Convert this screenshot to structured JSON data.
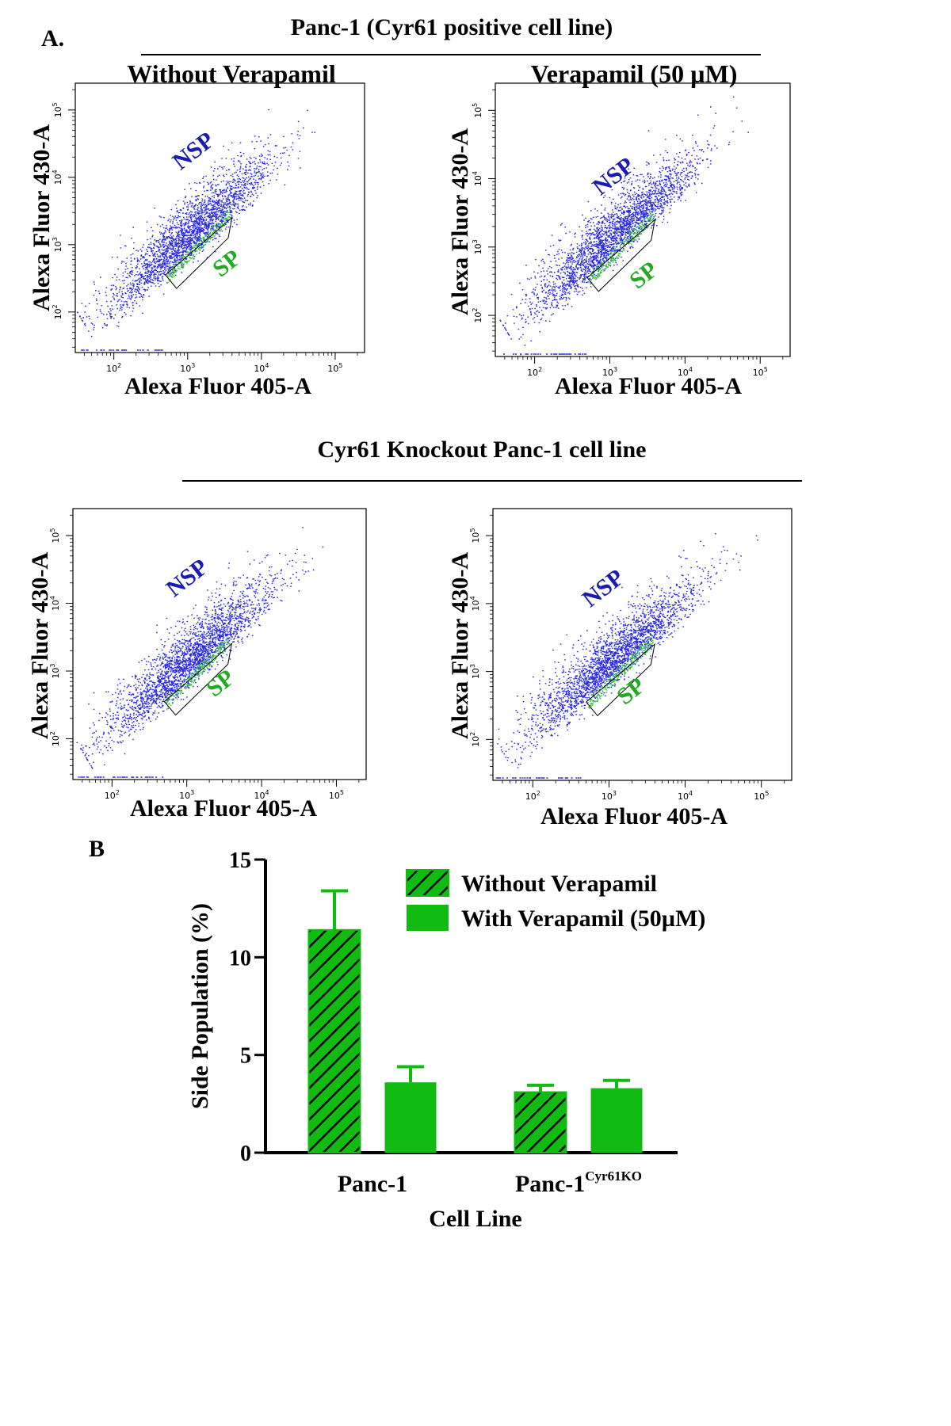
{
  "figure": {
    "panel_a_label": "A.",
    "panel_b_label": "B",
    "group1_title": "Panc-1 (Cyr61 positive cell line)",
    "group2_title": "Cyr61 Knockout Panc-1 cell line"
  },
  "colors": {
    "nsp": "#1a1ab4",
    "sp": "#22aa22",
    "bar_fill": "#11bb11",
    "points": "#2828e6",
    "sp_points": "#33cc33"
  },
  "chart_data": [
    {
      "type": "scatter",
      "title": "Without Verapamil",
      "xlabel": "Alexa Fluor 405-A",
      "ylabel": "Alexa Fluor 430-A",
      "xscale": "log",
      "yscale": "log",
      "xlim": [
        30,
        250000
      ],
      "ylim": [
        25,
        250000
      ],
      "x_ticks": [
        "10^2",
        "10^3",
        "10^4",
        "10^5"
      ],
      "y_ticks": [
        "10^2",
        "10^3",
        "10^4",
        "10^5"
      ],
      "gates": [
        {
          "name": "NSP"
        },
        {
          "name": "SP"
        }
      ]
    },
    {
      "type": "scatter",
      "title": "Verapamil (50 µM)",
      "xlabel": "Alexa Fluor 405-A",
      "ylabel": "Alexa Fluor 430-A",
      "xscale": "log",
      "yscale": "log",
      "xlim": [
        30,
        250000
      ],
      "ylim": [
        25,
        250000
      ],
      "x_ticks": [
        "10^2",
        "10^3",
        "10^4",
        "10^5"
      ],
      "y_ticks": [
        "10^2",
        "10^3",
        "10^4",
        "10^5"
      ],
      "gates": [
        {
          "name": "NSP"
        },
        {
          "name": "SP"
        }
      ]
    },
    {
      "type": "scatter",
      "title": "",
      "xlabel": "Alexa Fluor 405-A",
      "ylabel": "Alexa Fluor 430-A",
      "xscale": "log",
      "yscale": "log",
      "xlim": [
        30,
        250000
      ],
      "ylim": [
        25,
        250000
      ],
      "x_ticks": [
        "10^2",
        "10^3",
        "10^4",
        "10^5"
      ],
      "y_ticks": [
        "10^2",
        "10^3",
        "10^4",
        "10^5"
      ],
      "gates": [
        {
          "name": "NSP"
        },
        {
          "name": "SP"
        }
      ]
    },
    {
      "type": "scatter",
      "title": "",
      "xlabel": "Alexa Fluor 405-A",
      "ylabel": "Alexa Fluor 430-A",
      "xscale": "log",
      "yscale": "log",
      "xlim": [
        30,
        250000
      ],
      "ylim": [
        25,
        250000
      ],
      "x_ticks": [
        "10^2",
        "10^3",
        "10^4",
        "10^5"
      ],
      "y_ticks": [
        "10^2",
        "10^3",
        "10^4",
        "10^5"
      ],
      "gates": [
        {
          "name": "NSP"
        },
        {
          "name": "SP"
        }
      ]
    },
    {
      "type": "bar",
      "xlabel": "Cell Line",
      "ylabel": "Side Population (%)",
      "categories": [
        "Panc-1",
        "Panc-1"
      ],
      "category_superscripts": [
        "",
        "Cyr61KO"
      ],
      "ylim": [
        0,
        15
      ],
      "y_ticks": [
        0,
        5,
        10,
        15
      ],
      "series": [
        {
          "name": "Without Verapamil",
          "pattern": "hatched",
          "values": [
            11.4,
            3.1
          ],
          "errors": [
            2.0,
            0.35
          ]
        },
        {
          "name": "With Verapamil (50µM)",
          "pattern": "solid",
          "values": [
            3.6,
            3.3
          ],
          "errors": [
            0.8,
            0.4
          ]
        }
      ],
      "legend_position": "top-right"
    }
  ]
}
